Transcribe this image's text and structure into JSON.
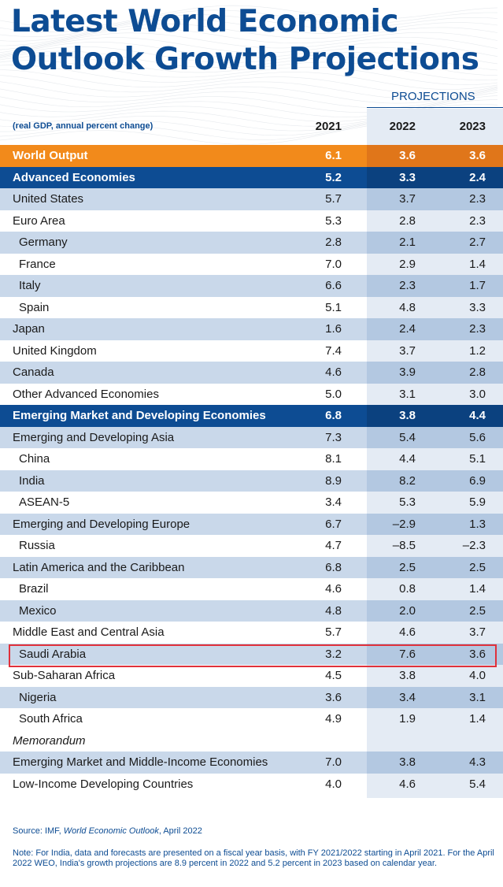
{
  "title_line1": "Latest World Economic",
  "title_line2": "Outlook Growth Projections",
  "projections_label": "PROJECTIONS",
  "subtitle": "(real GDP, annual percent change)",
  "years": [
    "2021",
    "2022",
    "2023"
  ],
  "colors": {
    "brand_blue": "#0d4c93",
    "orange": "#f28a1b",
    "row_alt": "#c9d8ea",
    "highlight": "#e0313b"
  },
  "chart_data": {
    "type": "table",
    "title": "Latest World Economic Outlook Growth Projections",
    "subtitle": "(real GDP, annual percent change)",
    "columns": [
      "2021",
      "2022",
      "2023"
    ],
    "rows": [
      {
        "label": "World Output",
        "values": [
          "6.1",
          "3.6",
          "3.6"
        ],
        "style": "world",
        "indent": false
      },
      {
        "label": "Advanced Economies",
        "values": [
          "5.2",
          "3.3",
          "2.4"
        ],
        "style": "blue",
        "indent": false
      },
      {
        "label": "United States",
        "values": [
          "5.7",
          "3.7",
          "2.3"
        ],
        "style": "alt",
        "indent": false
      },
      {
        "label": "Euro Area",
        "values": [
          "5.3",
          "2.8",
          "2.3"
        ],
        "style": "plain",
        "indent": false
      },
      {
        "label": "Germany",
        "values": [
          "2.8",
          "2.1",
          "2.7"
        ],
        "style": "alt",
        "indent": true
      },
      {
        "label": "France",
        "values": [
          "7.0",
          "2.9",
          "1.4"
        ],
        "style": "plain",
        "indent": true
      },
      {
        "label": "Italy",
        "values": [
          "6.6",
          "2.3",
          "1.7"
        ],
        "style": "alt",
        "indent": true
      },
      {
        "label": "Spain",
        "values": [
          "5.1",
          "4.8",
          "3.3"
        ],
        "style": "plain",
        "indent": true
      },
      {
        "label": "Japan",
        "values": [
          "1.6",
          "2.4",
          "2.3"
        ],
        "style": "alt",
        "indent": false
      },
      {
        "label": "United Kingdom",
        "values": [
          "7.4",
          "3.7",
          "1.2"
        ],
        "style": "plain",
        "indent": false
      },
      {
        "label": "Canada",
        "values": [
          "4.6",
          "3.9",
          "2.8"
        ],
        "style": "alt",
        "indent": false
      },
      {
        "label": "Other Advanced Economies",
        "values": [
          "5.0",
          "3.1",
          "3.0"
        ],
        "style": "plain",
        "indent": false
      },
      {
        "label": "Emerging Market and Developing Economies",
        "values": [
          "6.8",
          "3.8",
          "4.4"
        ],
        "style": "blue",
        "indent": false
      },
      {
        "label": "Emerging and Developing Asia",
        "values": [
          "7.3",
          "5.4",
          "5.6"
        ],
        "style": "alt",
        "indent": false
      },
      {
        "label": "China",
        "values": [
          "8.1",
          "4.4",
          "5.1"
        ],
        "style": "plain",
        "indent": true
      },
      {
        "label": "India",
        "values": [
          "8.9",
          "8.2",
          "6.9"
        ],
        "style": "alt",
        "indent": true
      },
      {
        "label": "ASEAN-5",
        "values": [
          "3.4",
          "5.3",
          "5.9"
        ],
        "style": "plain",
        "indent": true
      },
      {
        "label": "Emerging and Developing Europe",
        "values": [
          "6.7",
          "–2.9",
          "1.3"
        ],
        "style": "alt",
        "indent": false
      },
      {
        "label": "Russia",
        "values": [
          "4.7",
          "–8.5",
          "–2.3"
        ],
        "style": "plain",
        "indent": true
      },
      {
        "label": "Latin America and the Caribbean",
        "values": [
          "6.8",
          "2.5",
          "2.5"
        ],
        "style": "alt",
        "indent": false
      },
      {
        "label": "Brazil",
        "values": [
          "4.6",
          "0.8",
          "1.4"
        ],
        "style": "plain",
        "indent": true
      },
      {
        "label": "Mexico",
        "values": [
          "4.8",
          "2.0",
          "2.5"
        ],
        "style": "alt",
        "indent": true
      },
      {
        "label": "Middle East and Central Asia",
        "values": [
          "5.7",
          "4.6",
          "3.7"
        ],
        "style": "plain",
        "indent": false
      },
      {
        "label": "Saudi Arabia",
        "values": [
          "3.2",
          "7.6",
          "3.6"
        ],
        "style": "alt",
        "indent": true,
        "highlighted": true
      },
      {
        "label": "Sub-Saharan Africa",
        "values": [
          "4.5",
          "3.8",
          "4.0"
        ],
        "style": "plain",
        "indent": false
      },
      {
        "label": "Nigeria",
        "values": [
          "3.6",
          "3.4",
          "3.1"
        ],
        "style": "alt",
        "indent": true
      },
      {
        "label": "South Africa",
        "values": [
          "4.9",
          "1.9",
          "1.4"
        ],
        "style": "plain",
        "indent": true
      },
      {
        "label": "Memorandum",
        "values": [
          "",
          "",
          ""
        ],
        "style": "memo",
        "indent": false,
        "italic": true
      },
      {
        "label": "Emerging Market and Middle-Income Economies",
        "values": [
          "7.0",
          "3.8",
          "4.3"
        ],
        "style": "alt",
        "indent": false
      },
      {
        "label": "Low-Income Developing Countries",
        "values": [
          "4.0",
          "4.6",
          "5.4"
        ],
        "style": "plain",
        "indent": false
      }
    ]
  },
  "source": {
    "prefix": "Source: IMF, ",
    "publication": "World Economic Outlook",
    "suffix": ", April 2022"
  },
  "note": "Note: For India, data and forecasts are presented on a fiscal year basis, with FY 2021/2022 starting in April 2021. For the April 2022 WEO, India's growth projections are 8.9 percent in 2022 and 5.2 percent in 2023 based on calendar year."
}
